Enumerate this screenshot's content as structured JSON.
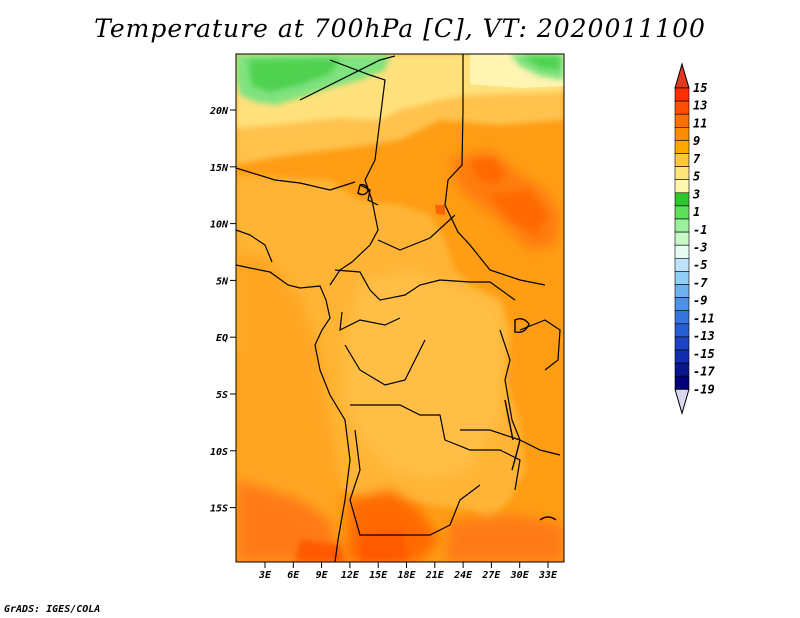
{
  "title": "Temperature at 700hPa [C], VT: 2020011100",
  "credit": "GrADS: IGES/COLA",
  "map": {
    "lat_ticks": [
      "20N",
      "15N",
      "10N",
      "5N",
      "EQ",
      "5S",
      "10S",
      "15S"
    ],
    "lon_ticks": [
      "3E",
      "6E",
      "9E",
      "12E",
      "15E",
      "18E",
      "21E",
      "24E",
      "27E",
      "30E",
      "33E"
    ]
  },
  "colorbar": {
    "labels": [
      "15",
      "13",
      "11",
      "9",
      "7",
      "5",
      "3",
      "1",
      "-1",
      "-3",
      "-5",
      "-7",
      "-9",
      "-11",
      "-13",
      "-15",
      "-17",
      "-19"
    ],
    "colors": [
      "#ff2d00",
      "#ff4f00",
      "#ff6e00",
      "#ff8c00",
      "#ffa800",
      "#ffc640",
      "#ffe47a",
      "#fff7b0",
      "#2ec82e",
      "#5ee05e",
      "#9cf09c",
      "#c8f8c8",
      "#e6fbf2",
      "#bfe4fa",
      "#92cdf5",
      "#6eb1ef",
      "#4d92e7",
      "#3675dc",
      "#265dd0",
      "#1b44c2",
      "#132db0",
      "#0a168c",
      "#00007a"
    ],
    "top_color": "#e13a1e",
    "bottom_color": "#d8d8f0"
  }
}
